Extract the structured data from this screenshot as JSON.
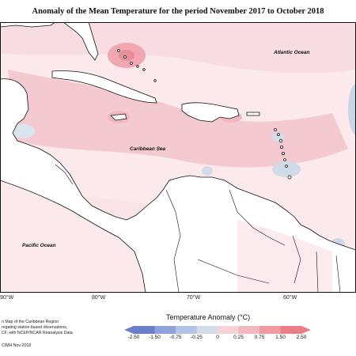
{
  "title": "Anomaly of the Mean Temperature for the period November 2017 to October 2018",
  "labels": {
    "atlantic": "Atlantic Ocean",
    "caribbean": "Caribbean Sea",
    "pacific": "Pacific Ocean"
  },
  "longitudes": [
    "90°W",
    "80°W",
    "70°W",
    "60°W"
  ],
  "legend": {
    "title": "Temperature Anomaly (°C)",
    "ticks": [
      "-2.50",
      "-1.50",
      "-0.75",
      "-0.25",
      "0",
      "0.25",
      "0.75",
      "1.50",
      "2.50"
    ],
    "colors": [
      "#6a7fc8",
      "#8fa2dc",
      "#b3c3e6",
      "#d3dde8",
      "#ffffff",
      "#f7d3d8",
      "#f2b8c0",
      "#f09aa4",
      "#e97d88"
    ]
  },
  "credits": {
    "line1": "n Map of the Caribbean Region",
    "line2": "regating station based observations,",
    "line3": "CF, with NCEP/NCAR Reanalysis Data.",
    "line4": "CIMH Nov-2018"
  }
}
